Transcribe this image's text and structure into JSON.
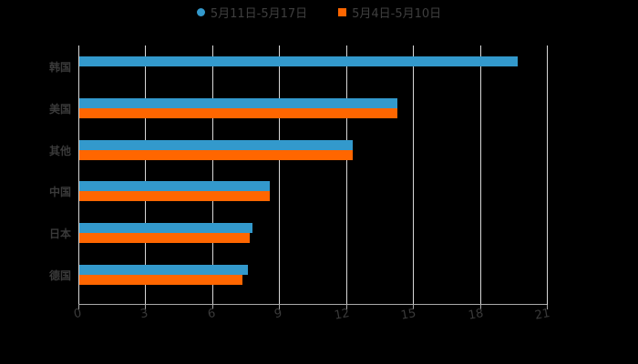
{
  "legend": [
    {
      "label": "5月11日-5月17日",
      "color": "#3399cc",
      "marker": "circle"
    },
    {
      "label": "5月4日-5月10日",
      "color": "#ff6600",
      "marker": "square"
    }
  ],
  "axis": {
    "ticks": [
      "0",
      "3",
      "6",
      "9",
      "12",
      "15",
      "18",
      "21"
    ]
  },
  "categories": [
    "韩国",
    "美国",
    "其他",
    "中国",
    "日本",
    "德国"
  ],
  "chart_data": {
    "type": "bar",
    "orientation": "horizontal",
    "title": "",
    "xlabel": "",
    "ylabel": "",
    "categories": [
      "韩国",
      "美国",
      "其他",
      "中国",
      "日本",
      "德国"
    ],
    "series": [
      {
        "name": "5月11日-5月17日",
        "color": "#3399cc",
        "values": [
          19.7,
          14.3,
          12.3,
          8.6,
          7.8,
          7.6
        ]
      },
      {
        "name": "5月4日-5月10日",
        "color": "#ff6600",
        "values": [
          null,
          14.3,
          12.3,
          8.6,
          7.7,
          7.35
        ]
      }
    ],
    "xlim": [
      0,
      21
    ],
    "xticks": [
      0,
      3,
      6,
      9,
      12,
      15,
      18,
      21
    ],
    "grid": true,
    "legend_position": "top"
  }
}
